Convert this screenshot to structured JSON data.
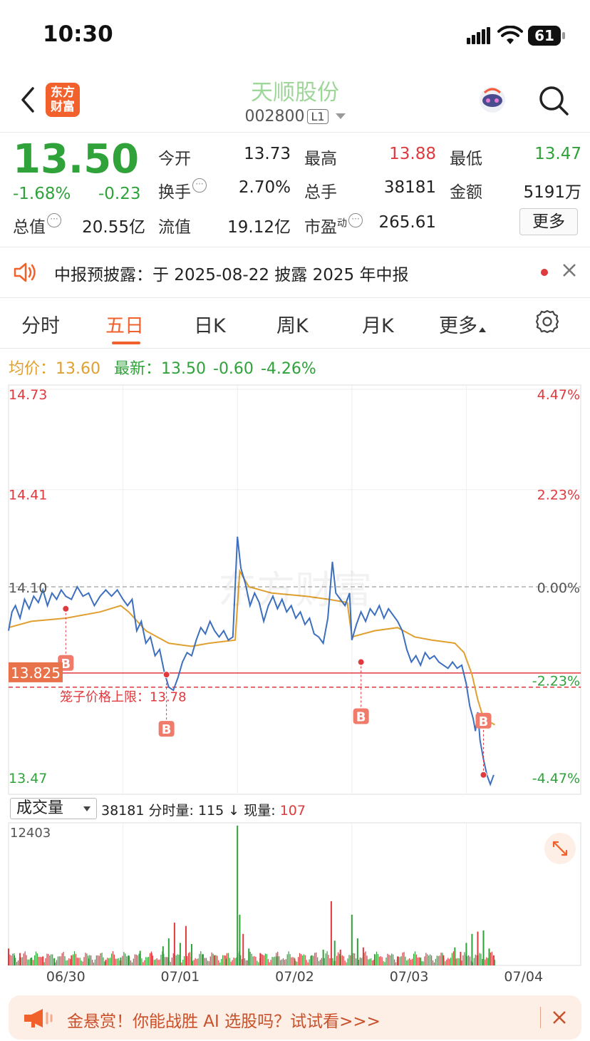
{
  "status": {
    "time": "10:30",
    "battery": "61"
  },
  "header": {
    "stock_name": "天顺股份",
    "stock_code": "002800",
    "level": "L1",
    "logo_text": "东方财富"
  },
  "quote": {
    "price": "13.50",
    "change_pct": "-1.68%",
    "change_amt": "-0.23",
    "fields": [
      {
        "label": "今开",
        "value": "13.73",
        "color": "#222222"
      },
      {
        "label": "最高",
        "value": "13.88",
        "color": "#e0393e"
      },
      {
        "label": "最低",
        "value": "13.47",
        "color": "#2fa23a"
      },
      {
        "label": "换手",
        "value": "2.70%",
        "color": "#222222"
      },
      {
        "label": "总手",
        "value": "38181",
        "color": "#222222"
      },
      {
        "label": "金额",
        "value": "5191万",
        "color": "#222222"
      },
      {
        "label": "总值",
        "value": "20.55亿",
        "color": "#222222"
      },
      {
        "label": "流值",
        "value": "19.12亿",
        "color": "#222222"
      },
      {
        "label": "市盈",
        "sup": "动",
        "value": "265.61",
        "color": "#222222"
      }
    ],
    "more_label": "更多"
  },
  "notice": {
    "text": "中报预披露：于 2025-08-22 披露 2025 年中报"
  },
  "tabs": {
    "items": [
      "分时",
      "五日",
      "日K",
      "周K",
      "月K",
      "更多"
    ],
    "active": 1
  },
  "price_info": {
    "avg_label": "均价：",
    "avg_value": "13.60",
    "latest_label": "最新：",
    "latest_value": "13.50",
    "latest_change": "-0.60",
    "latest_pct": "-4.26%"
  },
  "chart_data": {
    "type": "line",
    "x_labels": [
      "06/30",
      "07/01",
      "07/02",
      "07/03",
      "07/04"
    ],
    "y_ticks_left": [
      "14.73",
      "14.41",
      "14.10",
      "13.78",
      "13.47"
    ],
    "y_ticks_right": [
      "4.47%",
      "2.23%",
      "0.00%",
      "-2.23%",
      "-4.47%"
    ],
    "ylim": [
      13.47,
      14.73
    ],
    "prev_close": 14.1,
    "cage_label": "笼子价格上限：13.78",
    "cage_value": 13.78,
    "cursor_label": "13.825",
    "cursor_value": 13.825,
    "buy_marker": "B",
    "buy_signals": [
      {
        "day": 0.5,
        "price": 14.03
      },
      {
        "day": 1.38,
        "price": 13.82
      },
      {
        "day": 3.08,
        "price": 13.86
      },
      {
        "day": 4.15,
        "price": 13.5
      }
    ],
    "price_series": [
      [
        0.0,
        13.96
      ],
      [
        0.03,
        14.02
      ],
      [
        0.06,
        14.04
      ],
      [
        0.1,
        14.0
      ],
      [
        0.14,
        14.06
      ],
      [
        0.18,
        14.03
      ],
      [
        0.22,
        14.07
      ],
      [
        0.26,
        14.05
      ],
      [
        0.3,
        14.09
      ],
      [
        0.34,
        14.04
      ],
      [
        0.38,
        14.08
      ],
      [
        0.42,
        14.06
      ],
      [
        0.46,
        14.09
      ],
      [
        0.5,
        14.07
      ],
      [
        0.55,
        14.06
      ],
      [
        0.6,
        14.1
      ],
      [
        0.65,
        14.07
      ],
      [
        0.7,
        14.08
      ],
      [
        0.75,
        14.04
      ],
      [
        0.8,
        14.07
      ],
      [
        0.85,
        14.09
      ],
      [
        0.9,
        14.07
      ],
      [
        0.95,
        14.09
      ],
      [
        1.0,
        14.06
      ],
      [
        1.04,
        14.04
      ],
      [
        1.08,
        14.06
      ],
      [
        1.12,
        13.96
      ],
      [
        1.16,
        13.99
      ],
      [
        1.2,
        13.92
      ],
      [
        1.24,
        13.94
      ],
      [
        1.28,
        13.88
      ],
      [
        1.32,
        13.9
      ],
      [
        1.36,
        13.83
      ],
      [
        1.4,
        13.78
      ],
      [
        1.44,
        13.77
      ],
      [
        1.48,
        13.81
      ],
      [
        1.52,
        13.86
      ],
      [
        1.56,
        13.89
      ],
      [
        1.6,
        13.88
      ],
      [
        1.64,
        13.93
      ],
      [
        1.68,
        13.97
      ],
      [
        1.72,
        13.95
      ],
      [
        1.76,
        13.99
      ],
      [
        1.8,
        13.96
      ],
      [
        1.84,
        13.94
      ],
      [
        1.88,
        13.96
      ],
      [
        1.92,
        13.93
      ],
      [
        1.96,
        13.94
      ],
      [
        2.0,
        14.26
      ],
      [
        2.03,
        14.16
      ],
      [
        2.07,
        14.11
      ],
      [
        2.11,
        14.04
      ],
      [
        2.15,
        14.08
      ],
      [
        2.19,
        14.05
      ],
      [
        2.23,
        13.99
      ],
      [
        2.27,
        14.04
      ],
      [
        2.31,
        14.07
      ],
      [
        2.35,
        14.03
      ],
      [
        2.39,
        14.06
      ],
      [
        2.43,
        14.02
      ],
      [
        2.47,
        14.04
      ],
      [
        2.51,
        14.0
      ],
      [
        2.55,
        14.02
      ],
      [
        2.59,
        13.98
      ],
      [
        2.63,
        14.0
      ],
      [
        2.67,
        13.95
      ],
      [
        2.71,
        13.94
      ],
      [
        2.75,
        13.92
      ],
      [
        2.79,
        14.0
      ],
      [
        2.83,
        14.18
      ],
      [
        2.86,
        14.08
      ],
      [
        2.9,
        14.06
      ],
      [
        2.94,
        14.04
      ],
      [
        2.98,
        14.08
      ],
      [
        3.0,
        13.93
      ],
      [
        3.04,
        13.98
      ],
      [
        3.08,
        14.02
      ],
      [
        3.12,
        13.99
      ],
      [
        3.16,
        14.03
      ],
      [
        3.2,
        14.01
      ],
      [
        3.24,
        14.04
      ],
      [
        3.28,
        14.0
      ],
      [
        3.32,
        14.03
      ],
      [
        3.36,
        14.01
      ],
      [
        3.4,
        13.99
      ],
      [
        3.44,
        13.96
      ],
      [
        3.48,
        13.9
      ],
      [
        3.52,
        13.86
      ],
      [
        3.56,
        13.88
      ],
      [
        3.6,
        13.85
      ],
      [
        3.64,
        13.89
      ],
      [
        3.68,
        13.87
      ],
      [
        3.72,
        13.88
      ],
      [
        3.76,
        13.86
      ],
      [
        3.8,
        13.85
      ],
      [
        3.84,
        13.84
      ],
      [
        3.88,
        13.86
      ],
      [
        3.92,
        13.84
      ],
      [
        3.96,
        13.85
      ],
      [
        4.0,
        13.79
      ],
      [
        4.03,
        13.72
      ],
      [
        4.06,
        13.68
      ],
      [
        4.08,
        13.64
      ],
      [
        4.1,
        13.7
      ],
      [
        4.12,
        13.61
      ],
      [
        4.15,
        13.55
      ],
      [
        4.18,
        13.5
      ],
      [
        4.21,
        13.47
      ],
      [
        4.24,
        13.5
      ]
    ],
    "avg_series": [
      [
        0.0,
        13.97
      ],
      [
        0.2,
        13.99
      ],
      [
        0.5,
        14.0
      ],
      [
        0.8,
        14.02
      ],
      [
        0.98,
        14.04
      ],
      [
        1.05,
        14.02
      ],
      [
        1.2,
        13.96
      ],
      [
        1.4,
        13.92
      ],
      [
        1.6,
        13.91
      ],
      [
        1.75,
        13.92
      ],
      [
        1.98,
        13.93
      ],
      [
        2.02,
        14.15
      ],
      [
        2.1,
        14.1
      ],
      [
        2.3,
        14.08
      ],
      [
        2.6,
        14.07
      ],
      [
        2.8,
        14.06
      ],
      [
        2.96,
        14.05
      ],
      [
        3.0,
        13.94
      ],
      [
        3.2,
        13.96
      ],
      [
        3.4,
        13.97
      ],
      [
        3.55,
        13.94
      ],
      [
        3.7,
        13.93
      ],
      [
        3.9,
        13.92
      ],
      [
        3.98,
        13.89
      ],
      [
        4.05,
        13.82
      ],
      [
        4.1,
        13.74
      ],
      [
        4.15,
        13.68
      ],
      [
        4.25,
        13.66
      ]
    ],
    "volume": {
      "ymax_label": "12403",
      "ymax": 12403,
      "bars": [
        [
          0.0,
          1500,
          "r"
        ],
        [
          0.05,
          900,
          "g"
        ],
        [
          0.1,
          1100,
          "r"
        ],
        [
          0.2,
          700,
          "g"
        ],
        [
          0.3,
          800,
          "r"
        ],
        [
          0.4,
          650,
          "g"
        ],
        [
          0.55,
          900,
          "r"
        ],
        [
          0.7,
          600,
          "g"
        ],
        [
          0.85,
          500,
          "r"
        ],
        [
          0.98,
          700,
          "g"
        ],
        [
          1.05,
          900,
          "g"
        ],
        [
          1.15,
          1300,
          "g"
        ],
        [
          1.25,
          1100,
          "r"
        ],
        [
          1.35,
          1700,
          "g"
        ],
        [
          1.4,
          2400,
          "g"
        ],
        [
          1.45,
          3800,
          "r"
        ],
        [
          1.5,
          2000,
          "g"
        ],
        [
          1.55,
          3500,
          "r"
        ],
        [
          1.6,
          1900,
          "g"
        ],
        [
          1.7,
          1000,
          "g"
        ],
        [
          1.8,
          900,
          "r"
        ],
        [
          1.9,
          600,
          "g"
        ],
        [
          2.0,
          12403,
          "g"
        ],
        [
          2.02,
          4500,
          "g"
        ],
        [
          2.05,
          2800,
          "r"
        ],
        [
          2.1,
          1500,
          "g"
        ],
        [
          2.2,
          1100,
          "r"
        ],
        [
          2.35,
          800,
          "g"
        ],
        [
          2.5,
          600,
          "r"
        ],
        [
          2.65,
          900,
          "g"
        ],
        [
          2.75,
          1400,
          "g"
        ],
        [
          2.82,
          5700,
          "r"
        ],
        [
          2.85,
          2200,
          "g"
        ],
        [
          2.9,
          1400,
          "r"
        ],
        [
          3.0,
          4500,
          "g"
        ],
        [
          3.05,
          2400,
          "g"
        ],
        [
          3.1,
          1600,
          "r"
        ],
        [
          3.2,
          1000,
          "g"
        ],
        [
          3.4,
          800,
          "r"
        ],
        [
          3.6,
          700,
          "g"
        ],
        [
          3.8,
          900,
          "r"
        ],
        [
          3.9,
          1600,
          "g"
        ],
        [
          3.95,
          1200,
          "r"
        ],
        [
          4.0,
          2000,
          "g"
        ],
        [
          4.05,
          2800,
          "g"
        ],
        [
          4.1,
          3000,
          "r"
        ],
        [
          4.15,
          3100,
          "g"
        ],
        [
          4.2,
          1500,
          "g"
        ],
        [
          4.24,
          900,
          "r"
        ]
      ]
    }
  },
  "volume_header": {
    "selector": "成交量",
    "total": "38181",
    "fs_label": "分时量:",
    "fs_value": "115",
    "arrow": "↓",
    "cur_label": "现量:",
    "cur_value": "107"
  },
  "promo": {
    "text": "金悬赏！你能战胜 AI 选股吗？试试看>>>"
  },
  "colors": {
    "up": "#e0393e",
    "down": "#2fa23a",
    "accent": "#f0612c",
    "line": "#3d6fbf",
    "avg": "#e0a030"
  }
}
